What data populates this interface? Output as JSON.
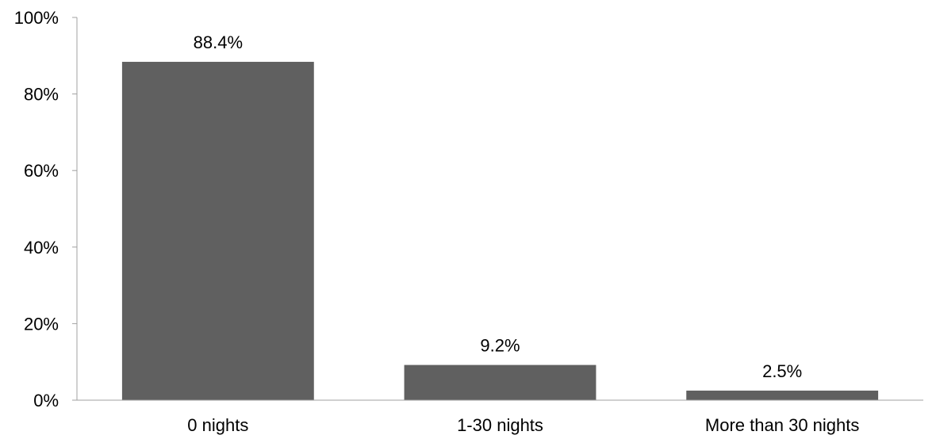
{
  "chart_data": {
    "type": "bar",
    "title": "",
    "xlabel": "",
    "ylabel": "",
    "categories": [
      "0 nights",
      "1-30 nights",
      "More than 30 nights"
    ],
    "values": [
      88.4,
      9.2,
      2.5
    ],
    "data_labels": [
      "88.4%",
      "9.2%",
      "2.5%"
    ],
    "ylim": [
      0,
      100
    ],
    "yticks": [
      0,
      20,
      40,
      60,
      80,
      100
    ],
    "ytick_labels": [
      "0%",
      "20%",
      "40%",
      "60%",
      "80%",
      "100%"
    ],
    "grid": false,
    "legend": "none",
    "bar_color": "#606060",
    "axis_color": "#a0a0a0"
  }
}
